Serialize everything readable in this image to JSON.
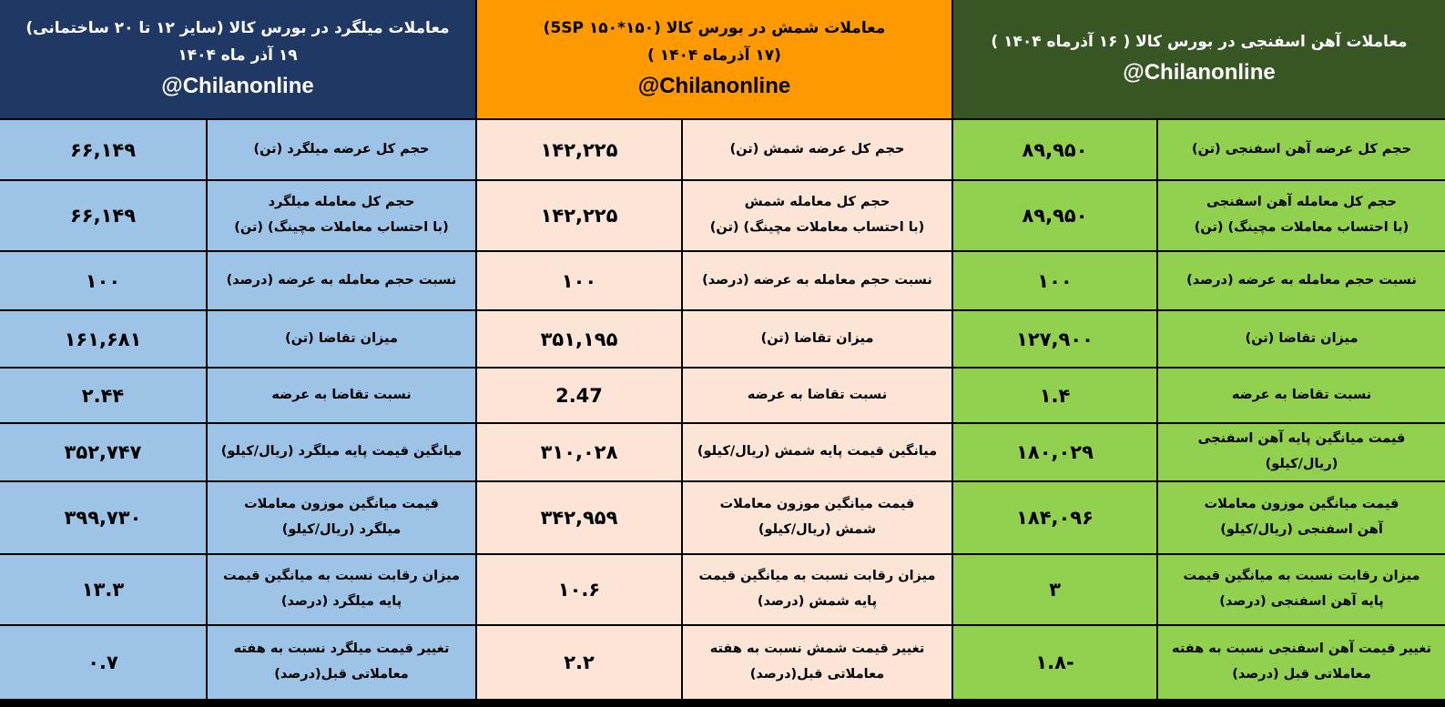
{
  "panels": [
    {
      "id": "rebar",
      "header_bg": "#1f3864",
      "header_color": "#ffffff",
      "cell_bg": "#9dc3e6",
      "title": "معاملات میلگرد در بورس کالا (سایز ۱۲ تا ۲۰ ساختمانی)",
      "date": "۱۹ آذر ماه ۱۴۰۴",
      "handle": "@Chilanonline",
      "rows": [
        {
          "label": "حجم کل عرضه میلگرد (تن)",
          "value": "۶۶,۱۴۹"
        },
        {
          "label": "حجم کل معامله میلگرد\n(با احتساب معاملات مچینگ) (تن)",
          "value": "۶۶,۱۴۹"
        },
        {
          "label": "نسبت حجم معامله به عرضه (درصد)",
          "value": "۱۰۰"
        },
        {
          "label": "میزان تقاضا (تن)",
          "value": "۱۶۱,۶۸۱"
        },
        {
          "label": "نسبت تقاضا به عرضه",
          "value": "۲.۴۴"
        },
        {
          "label": "میانگین قیمت پایه میلگرد (ریال/کیلو)",
          "value": "۳۵۲,۷۴۷"
        },
        {
          "label": "قیمت میانگین موزون معاملات\nمیلگرد (ریال/کیلو)",
          "value": "۳۹۹,۷۳۰"
        },
        {
          "label": "میزان رقابت نسبت به میانگین قیمت\nپایه میلگرد (درصد)",
          "value": "۱۳.۳"
        },
        {
          "label": "تغییر قیمت میلگرد نسبت به هفته\nمعاملاتی قبل(درصد)",
          "value": "۰.۷"
        }
      ]
    },
    {
      "id": "billet",
      "header_bg": "#ff9900",
      "header_color": "#000000",
      "cell_bg": "#fce4d6",
      "title": "معاملات شمش در بورس کالا (۱۵۰*۱۵۰ 5SP)",
      "date": "(۱۷ آذرماه ۱۴۰۴ )",
      "handle": "@Chilanonline",
      "rows": [
        {
          "label": "حجم کل عرضه شمش (تن)",
          "value": "۱۴۲,۲۲۵"
        },
        {
          "label": "حجم کل معامله شمش\n(با احتساب معاملات مچینگ) (تن)",
          "value": "۱۴۲,۲۲۵"
        },
        {
          "label": "نسبت حجم معامله به عرضه (درصد)",
          "value": "۱۰۰"
        },
        {
          "label": "میزان تقاضا (تن)",
          "value": "۳۵۱,۱۹۵"
        },
        {
          "label": "نسبت تقاضا به عرضه",
          "value": "2.47"
        },
        {
          "label": "میانگین قیمت پایه شمش (ریال/کیلو)",
          "value": "۳۱۰,۰۲۸"
        },
        {
          "label": "قیمت میانگین موزون معاملات\nشمش (ریال/کیلو)",
          "value": "۳۴۲,۹۵۹"
        },
        {
          "label": "میزان رقابت نسبت به میانگین قیمت\nپایه شمش (درصد)",
          "value": "۱۰.۶"
        },
        {
          "label": "تغییر قیمت شمش نسبت به هفته\nمعاملاتی قبل(درصد)",
          "value": "۲.۲"
        }
      ]
    },
    {
      "id": "dri",
      "header_bg": "#375623",
      "header_color": "#ffffff",
      "cell_bg": "#92d050",
      "title": "معاملات آهن اسفنجی در بورس کالا ( ۱۶ آذرماه ۱۴۰۴ )",
      "handle": "@Chilanonline",
      "rows": [
        {
          "label": "حجم کل عرضه آهن اسفنجی (تن)",
          "value": "۸۹,۹۵۰"
        },
        {
          "label": "حجم کل معامله آهن اسفنجی\n(با احتساب معاملات مچینگ) (تن)",
          "value": "۸۹,۹۵۰"
        },
        {
          "label": "نسبت حجم معامله به عرضه (درصد)",
          "value": "۱۰۰"
        },
        {
          "label": "میزان تقاضا (تن)",
          "value": "۱۲۷,۹۰۰"
        },
        {
          "label": "نسبت تقاضا به عرضه",
          "value": "۱.۴"
        },
        {
          "label": "قیمت میانگین پایه آهن اسفنجی\n(ریال/کیلو)",
          "value": "۱۸۰,۰۲۹"
        },
        {
          "label": "قیمت میانگین موزون معاملات\nآهن اسفنجی (ریال/کیلو)",
          "value": "۱۸۴,۰۹۶"
        },
        {
          "label": "میزان رقابت نسبت به میانگین قیمت\nپایه آهن اسفنجی (درصد)",
          "value": "۳"
        },
        {
          "label": "تغییر قیمت آهن اسفنجی نسبت به هفته\nمعاملاتی قبل (درصد)",
          "value": "-۱.۸"
        }
      ]
    }
  ]
}
